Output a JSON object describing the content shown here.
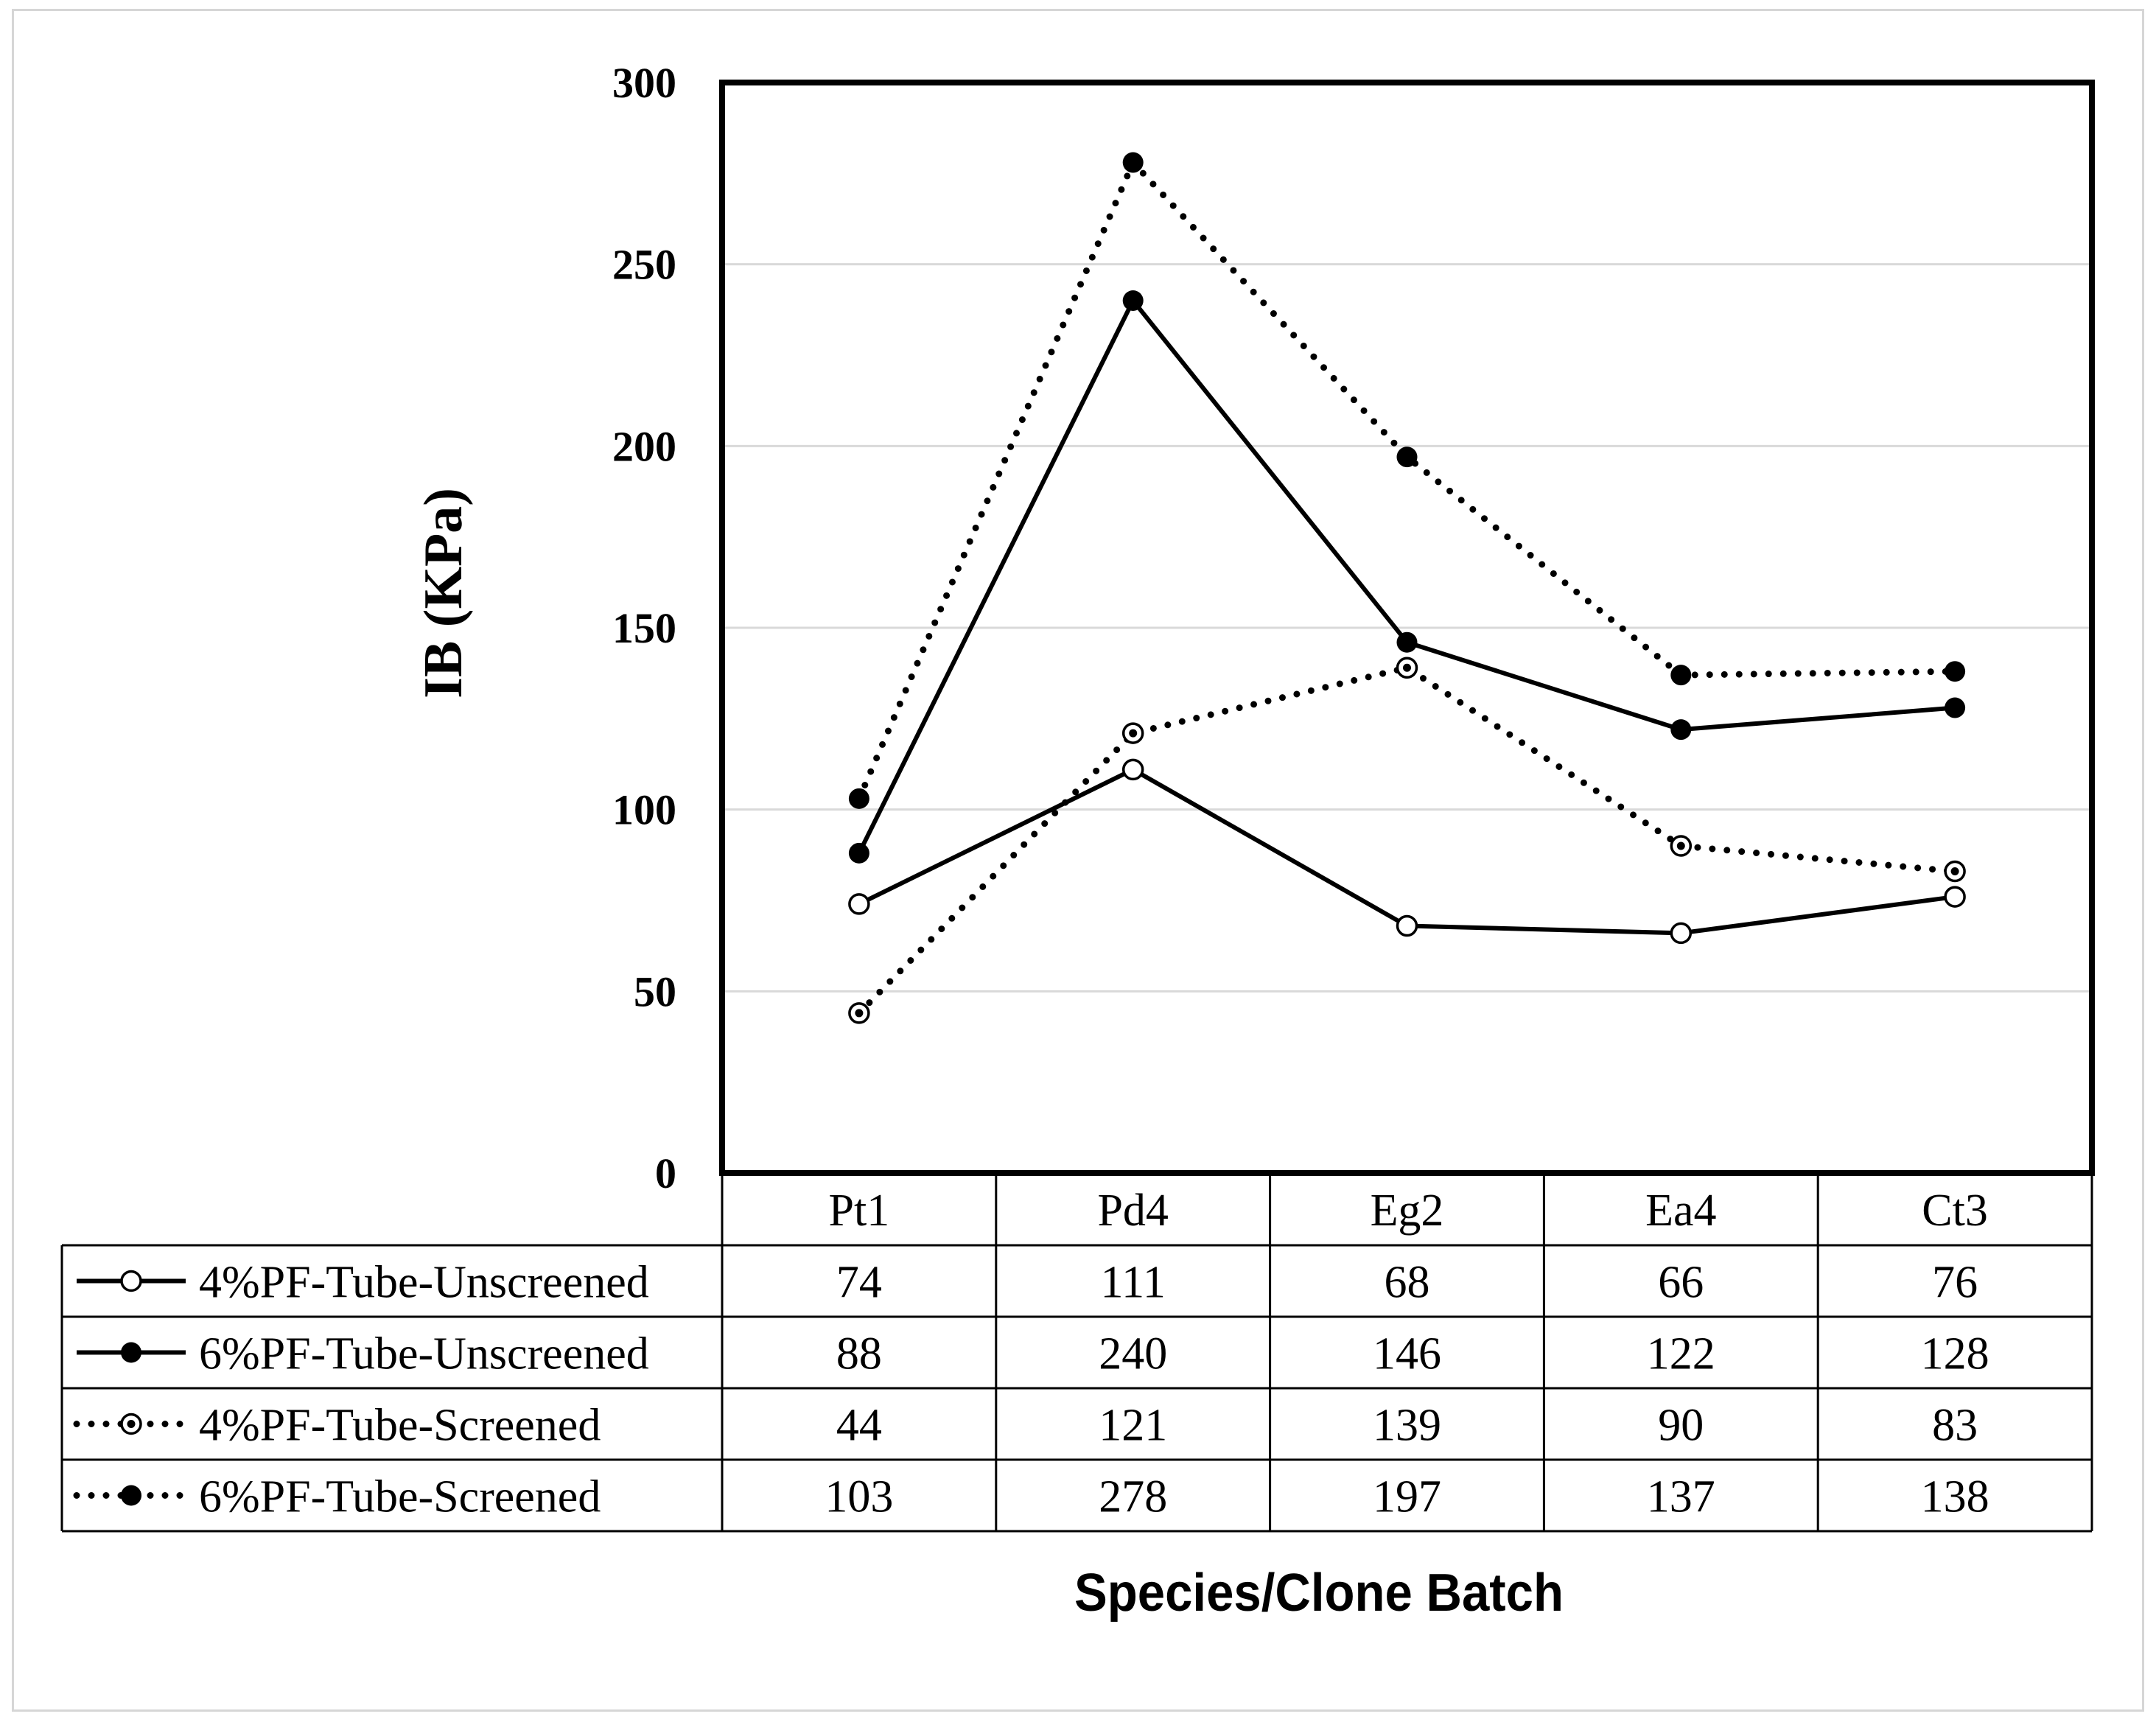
{
  "chart_data": {
    "type": "line",
    "title": "",
    "xlabel": "Species/Clone Batch",
    "ylabel": "IB (KPa)",
    "ylim": [
      0,
      300
    ],
    "yticks": [
      0,
      50,
      100,
      150,
      200,
      250,
      300
    ],
    "ytick_labels": [
      "0",
      "50",
      "100",
      "150",
      "200",
      "250",
      "300"
    ],
    "grid": true,
    "legend_placement": "data table below plot",
    "categories": [
      "Pt1",
      "Pd4",
      "Eg2",
      "Ea4",
      "Ct3"
    ],
    "series": [
      {
        "name": "4%PF-Tube-Unscreened",
        "values": [
          74,
          111,
          68,
          66,
          76
        ],
        "line_style": "solid",
        "marker": "open-circle",
        "color": "#000000"
      },
      {
        "name": "6%PF-Tube-Unscreened",
        "values": [
          88,
          240,
          146,
          122,
          128
        ],
        "line_style": "solid",
        "marker": "filled-circle",
        "color": "#000000"
      },
      {
        "name": "4%PF-Tube-Screened",
        "values": [
          44,
          121,
          139,
          90,
          83
        ],
        "line_style": "dotted",
        "marker": "dotted-circle",
        "color": "#000000"
      },
      {
        "name": "6%PF-Tube-Screened",
        "values": [
          103,
          278,
          197,
          137,
          138
        ],
        "line_style": "dotted",
        "marker": "filled-circle",
        "color": "#000000"
      }
    ],
    "table_values": [
      [
        "74",
        "111",
        "68",
        "66",
        "76"
      ],
      [
        "88",
        "240",
        "146",
        "122",
        "128"
      ],
      [
        "44",
        "121",
        "139",
        "90",
        "83"
      ],
      [
        "103",
        "278",
        "197",
        "137",
        "138"
      ]
    ]
  }
}
